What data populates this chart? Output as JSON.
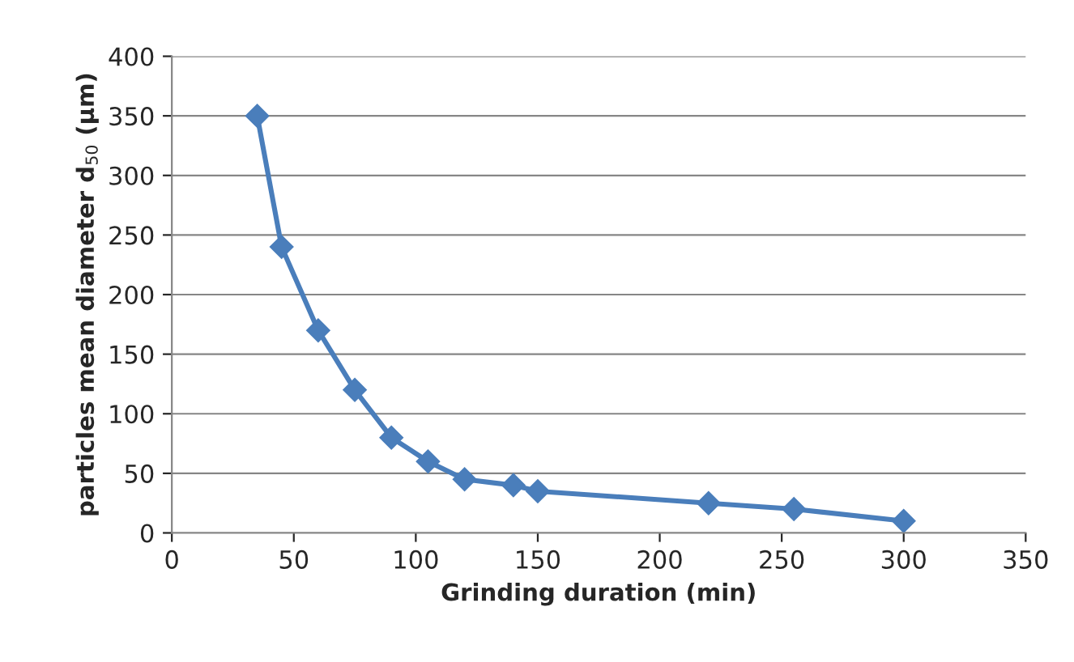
{
  "chart_data": {
    "type": "line",
    "xlabel": "Grinding duration (min)",
    "ylabel": "particles mean diameter d$_{50}$ (µm)",
    "x": [
      35,
      45,
      60,
      75,
      90,
      105,
      120,
      140,
      150,
      220,
      255,
      300
    ],
    "series": [
      {
        "color": "#4a7ebb",
        "values": [
          350,
          240,
          170,
          120,
          80,
          60,
          45,
          40,
          35,
          25,
          20,
          10
        ]
      }
    ],
    "xlim": [
      0,
      350
    ],
    "xticks": [
      0,
      50,
      100,
      150,
      200,
      250,
      300,
      350
    ],
    "ylim": [
      0,
      400
    ],
    "yticks": [
      0,
      50,
      100,
      150,
      200,
      250,
      300,
      350,
      400
    ],
    "grid": "y",
    "marker": "diamond",
    "line_style": "solid",
    "legend": false
  }
}
